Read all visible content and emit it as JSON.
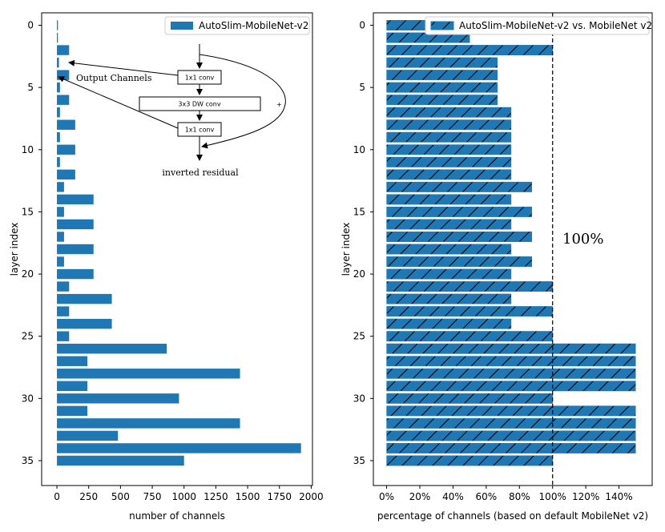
{
  "chart_data": [
    {
      "type": "bar",
      "orientation": "horizontal",
      "legend": "AutoSlim-MobileNet-v2",
      "legend_location": "top-right",
      "xlabel": "number of channels",
      "ylabel": "layer index",
      "xlim": [
        -120,
        2010
      ],
      "ylim": [
        -1,
        37
      ],
      "xticks": [
        0,
        250,
        500,
        750,
        1000,
        1250,
        1500,
        1750,
        2000
      ],
      "xtick_labels": [
        "0",
        "250",
        "500",
        "750",
        "1000",
        "1250",
        "1500",
        "1750",
        "2000"
      ],
      "yticks": [
        0,
        5,
        10,
        15,
        20,
        25,
        30,
        35
      ],
      "yticks_labels": [
        "0",
        "5",
        "10",
        "15",
        "20",
        "25",
        "30",
        "35"
      ],
      "color": "#1f77b4",
      "categories": [
        0,
        1,
        2,
        3,
        4,
        5,
        6,
        7,
        8,
        9,
        10,
        11,
        12,
        13,
        14,
        15,
        16,
        17,
        18,
        19,
        20,
        21,
        22,
        23,
        24,
        25,
        26,
        27,
        28,
        29,
        30,
        31,
        32,
        33,
        34,
        35
      ],
      "values": [
        8,
        8,
        96,
        16,
        96,
        24,
        96,
        24,
        144,
        24,
        144,
        24,
        144,
        56,
        288,
        56,
        288,
        56,
        288,
        56,
        288,
        96,
        432,
        96,
        432,
        96,
        864,
        240,
        1440,
        240,
        960,
        240,
        1440,
        480,
        1920,
        1000
      ],
      "inset_diagram": {
        "title": "inverted residual",
        "callout": "Output Channels",
        "blocks": [
          "1x1 conv",
          "3x3 DW conv",
          "1x1 conv"
        ],
        "skip_symbol": "+",
        "arrow_targets_layers": [
          2,
          3
        ]
      }
    },
    {
      "type": "bar",
      "orientation": "horizontal",
      "hatch": "/",
      "legend": "AutoSlim-MobileNet-v2 vs. MobileNet v2",
      "legend_location": "top-right",
      "xlabel": "percentage of channels (based on default MobileNet v2)",
      "ylabel": "layer index",
      "xlim": [
        -8,
        160
      ],
      "ylim": [
        -1,
        37
      ],
      "xticks": [
        0,
        20,
        40,
        60,
        80,
        100,
        120,
        140
      ],
      "xtick_labels": [
        "0%",
        "20%",
        "40%",
        "60%",
        "80%",
        "100%",
        "120%",
        "140%"
      ],
      "yticks": [
        0,
        5,
        10,
        15,
        20,
        25,
        30,
        35
      ],
      "yticks_labels": [
        "0",
        "5",
        "10",
        "15",
        "20",
        "25",
        "30",
        "35"
      ],
      "color": "#1f77b4",
      "reference_line": {
        "x": 100,
        "style": "dashed",
        "label": "100%"
      },
      "categories": [
        0,
        1,
        2,
        3,
        4,
        5,
        6,
        7,
        8,
        9,
        10,
        11,
        12,
        13,
        14,
        15,
        16,
        17,
        18,
        19,
        20,
        21,
        22,
        23,
        24,
        25,
        26,
        27,
        28,
        29,
        30,
        31,
        32,
        33,
        34,
        35
      ],
      "values": [
        25,
        50,
        100,
        66.7,
        66.7,
        66.7,
        66.7,
        75,
        75,
        75,
        75,
        75,
        75,
        87.5,
        75,
        87.5,
        75,
        87.5,
        75,
        87.5,
        75,
        100,
        75,
        100,
        75,
        100,
        150,
        150,
        150,
        150,
        100,
        150,
        150,
        150,
        150,
        100
      ]
    }
  ]
}
